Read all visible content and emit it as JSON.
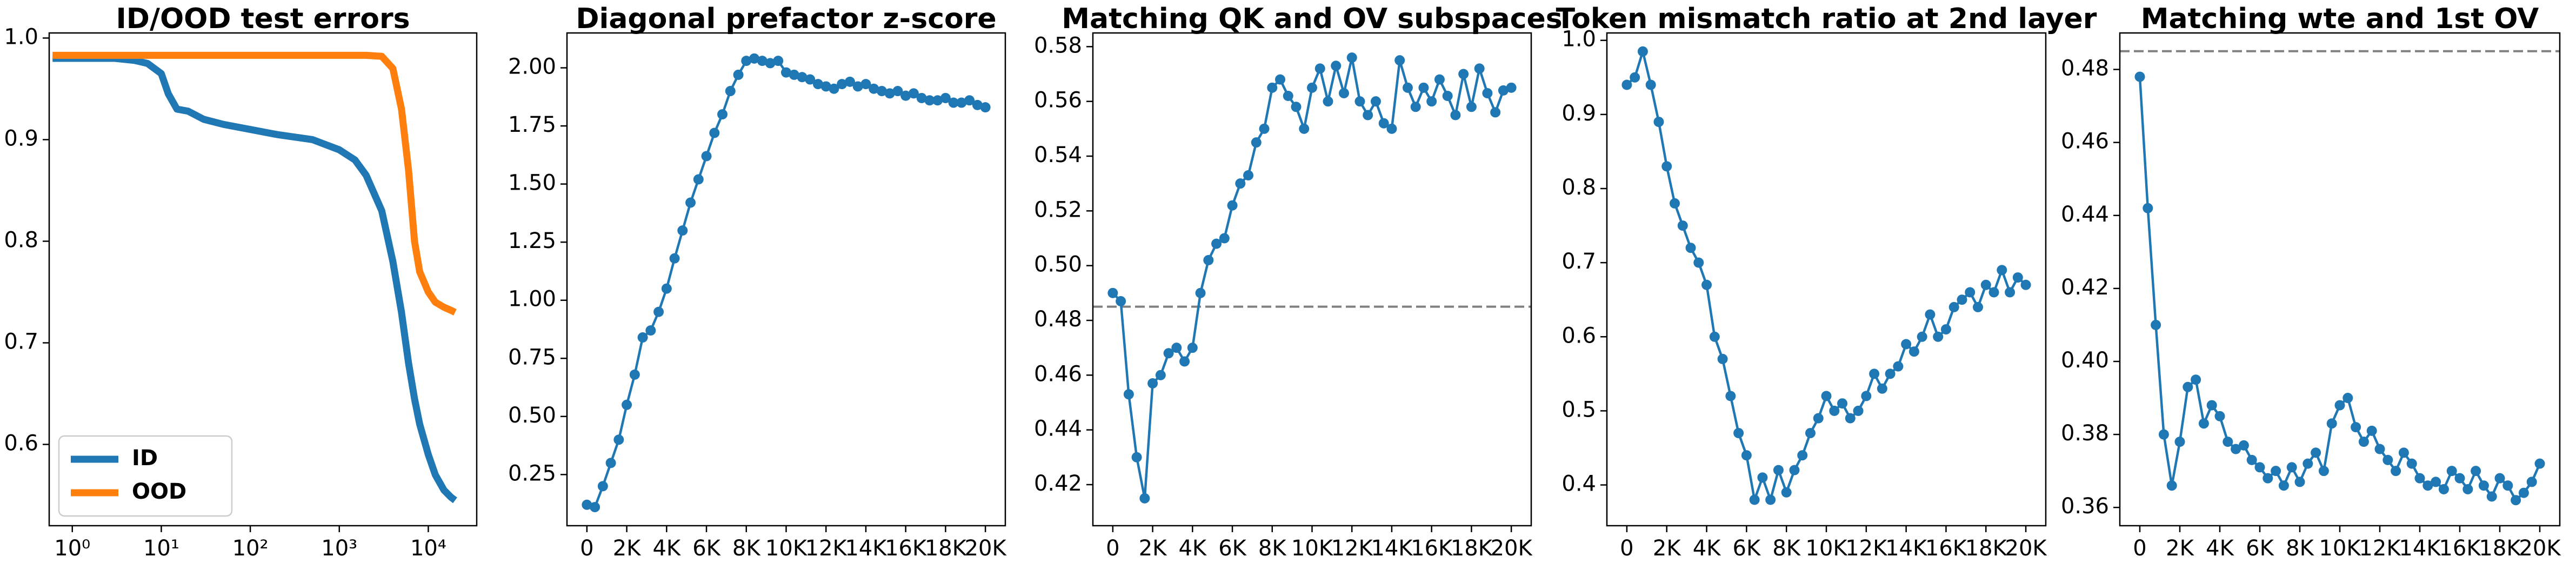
{
  "chart_data": [
    {
      "type": "line",
      "title": "ID/OOD test errors",
      "xscale": "log",
      "xlim": [
        0.55,
        35000
      ],
      "xticks": [
        {
          "value": 1,
          "label": "10⁰"
        },
        {
          "value": 10,
          "label": "10¹"
        },
        {
          "value": 100,
          "label": "10²"
        },
        {
          "value": 1000,
          "label": "10³"
        },
        {
          "value": 10000,
          "label": "10⁴"
        }
      ],
      "ylim": [
        0.52,
        1.005
      ],
      "yticks": [
        0.6,
        0.7,
        0.8,
        0.9,
        {
          "value": 1,
          "label": "1.0"
        }
      ],
      "legend": "lower left",
      "markers": false,
      "x": [
        0.6,
        1,
        2,
        3,
        5,
        7,
        10,
        12,
        15,
        20,
        30,
        50,
        100,
        200,
        500,
        1000,
        1500,
        2000,
        3000,
        4000,
        5000,
        6000,
        7000,
        8000,
        10000,
        12000,
        15000,
        18000,
        20000
      ],
      "series": [
        {
          "name": "ID",
          "color": "#1f77b4",
          "values": [
            0.98,
            0.98,
            0.98,
            0.98,
            0.978,
            0.975,
            0.965,
            0.945,
            0.93,
            0.928,
            0.92,
            0.915,
            0.91,
            0.905,
            0.9,
            0.89,
            0.88,
            0.865,
            0.83,
            0.78,
            0.73,
            0.68,
            0.645,
            0.62,
            0.59,
            0.57,
            0.555,
            0.548,
            0.545
          ]
        },
        {
          "name": "OOD",
          "color": "#ff7f0e",
          "values": [
            0.983,
            0.983,
            0.983,
            0.983,
            0.983,
            0.983,
            0.983,
            0.983,
            0.983,
            0.983,
            0.983,
            0.983,
            0.983,
            0.983,
            0.983,
            0.983,
            0.983,
            0.983,
            0.982,
            0.97,
            0.93,
            0.87,
            0.8,
            0.77,
            0.75,
            0.74,
            0.735,
            0.732,
            0.73
          ]
        }
      ]
    },
    {
      "type": "line",
      "title": "Diagonal prefactor z-score",
      "xlim": [
        -1000,
        21000
      ],
      "xticks": [
        0,
        {
          "value": 2000,
          "label": "2K"
        },
        {
          "value": 4000,
          "label": "4K"
        },
        {
          "value": 6000,
          "label": "6K"
        },
        {
          "value": 8000,
          "label": "8K"
        },
        {
          "value": 10000,
          "label": "10K"
        },
        {
          "value": 12000,
          "label": "12K"
        },
        {
          "value": 14000,
          "label": "14K"
        },
        {
          "value": 16000,
          "label": "16K"
        },
        {
          "value": 18000,
          "label": "18K"
        },
        {
          "value": 20000,
          "label": "20K"
        }
      ],
      "ylim": [
        0.03,
        2.15
      ],
      "yticks": [
        0.25,
        {
          "value": 0.5,
          "label": "0.50"
        },
        0.75,
        {
          "value": 1,
          "label": "1.00"
        },
        1.25,
        {
          "value": 1.5,
          "label": "1.50"
        },
        1.75,
        {
          "value": 2,
          "label": "2.00"
        }
      ],
      "markers": true,
      "x": [
        0,
        400,
        800,
        1200,
        1600,
        2000,
        2400,
        2800,
        3200,
        3600,
        4000,
        4400,
        4800,
        5200,
        5600,
        6000,
        6400,
        6800,
        7200,
        7600,
        8000,
        8400,
        8800,
        9200,
        9600,
        10000,
        10400,
        10800,
        11200,
        11600,
        12000,
        12400,
        12800,
        13200,
        13600,
        14000,
        14400,
        14800,
        15200,
        15600,
        16000,
        16400,
        16800,
        17200,
        17600,
        18000,
        18400,
        18800,
        19200,
        19600,
        20000
      ],
      "series": [
        {
          "color": "#1f77b4",
          "values": [
            0.12,
            0.11,
            0.2,
            0.3,
            0.4,
            0.55,
            0.68,
            0.84,
            0.87,
            0.95,
            1.05,
            1.18,
            1.3,
            1.42,
            1.52,
            1.62,
            1.72,
            1.8,
            1.9,
            1.97,
            2.03,
            2.04,
            2.03,
            2.02,
            2.03,
            1.98,
            1.97,
            1.96,
            1.95,
            1.93,
            1.92,
            1.91,
            1.93,
            1.94,
            1.92,
            1.93,
            1.91,
            1.9,
            1.89,
            1.9,
            1.88,
            1.89,
            1.87,
            1.86,
            1.86,
            1.87,
            1.85,
            1.85,
            1.86,
            1.84,
            1.83
          ]
        }
      ]
    },
    {
      "type": "line",
      "title": "Matching QK and OV subspaces",
      "xlim": [
        -1000,
        21000
      ],
      "xticks": [
        0,
        {
          "value": 2000,
          "label": "2K"
        },
        {
          "value": 4000,
          "label": "4K"
        },
        {
          "value": 6000,
          "label": "6K"
        },
        {
          "value": 8000,
          "label": "8K"
        },
        {
          "value": 10000,
          "label": "10K"
        },
        {
          "value": 12000,
          "label": "12K"
        },
        {
          "value": 14000,
          "label": "14K"
        },
        {
          "value": 16000,
          "label": "16K"
        },
        {
          "value": 18000,
          "label": "18K"
        },
        {
          "value": 20000,
          "label": "20K"
        }
      ],
      "ylim": [
        0.405,
        0.585
      ],
      "yticks": [
        0.42,
        0.44,
        0.46,
        0.48,
        {
          "value": 0.5,
          "label": "0.50"
        },
        0.52,
        0.54,
        0.56,
        0.58
      ],
      "markers": true,
      "hline": 0.485,
      "x": [
        0,
        400,
        800,
        1200,
        1600,
        2000,
        2400,
        2800,
        3200,
        3600,
        4000,
        4400,
        4800,
        5200,
        5600,
        6000,
        6400,
        6800,
        7200,
        7600,
        8000,
        8400,
        8800,
        9200,
        9600,
        10000,
        10400,
        10800,
        11200,
        11600,
        12000,
        12400,
        12800,
        13200,
        13600,
        14000,
        14400,
        14800,
        15200,
        15600,
        16000,
        16400,
        16800,
        17200,
        17600,
        18000,
        18400,
        18800,
        19200,
        19600,
        20000
      ],
      "series": [
        {
          "color": "#1f77b4",
          "values": [
            0.49,
            0.487,
            0.453,
            0.43,
            0.415,
            0.457,
            0.46,
            0.468,
            0.47,
            0.465,
            0.47,
            0.49,
            0.502,
            0.508,
            0.51,
            0.522,
            0.53,
            0.533,
            0.545,
            0.55,
            0.565,
            0.568,
            0.562,
            0.558,
            0.55,
            0.565,
            0.572,
            0.56,
            0.573,
            0.563,
            0.576,
            0.56,
            0.555,
            0.56,
            0.552,
            0.55,
            0.575,
            0.565,
            0.558,
            0.565,
            0.56,
            0.568,
            0.562,
            0.555,
            0.57,
            0.558,
            0.572,
            0.563,
            0.556,
            0.564,
            0.565
          ]
        }
      ]
    },
    {
      "type": "line",
      "title": "Token mismatch ratio at 2nd layer",
      "xlim": [
        -1000,
        21000
      ],
      "xticks": [
        0,
        {
          "value": 2000,
          "label": "2K"
        },
        {
          "value": 4000,
          "label": "4K"
        },
        {
          "value": 6000,
          "label": "6K"
        },
        {
          "value": 8000,
          "label": "8K"
        },
        {
          "value": 10000,
          "label": "10K"
        },
        {
          "value": 12000,
          "label": "12K"
        },
        {
          "value": 14000,
          "label": "14K"
        },
        {
          "value": 16000,
          "label": "16K"
        },
        {
          "value": 18000,
          "label": "18K"
        },
        {
          "value": 20000,
          "label": "20K"
        }
      ],
      "ylim": [
        0.345,
        1.01
      ],
      "yticks": [
        0.4,
        0.5,
        0.6,
        0.7,
        0.8,
        0.9,
        {
          "value": 1,
          "label": "1.0"
        }
      ],
      "markers": true,
      "x": [
        0,
        400,
        800,
        1200,
        1600,
        2000,
        2400,
        2800,
        3200,
        3600,
        4000,
        4400,
        4800,
        5200,
        5600,
        6000,
        6400,
        6800,
        7200,
        7600,
        8000,
        8400,
        8800,
        9200,
        9600,
        10000,
        10400,
        10800,
        11200,
        11600,
        12000,
        12400,
        12800,
        13200,
        13600,
        14000,
        14400,
        14800,
        15200,
        15600,
        16000,
        16400,
        16800,
        17200,
        17600,
        18000,
        18400,
        18800,
        19200,
        19600,
        20000
      ],
      "series": [
        {
          "color": "#1f77b4",
          "values": [
            0.94,
            0.95,
            0.985,
            0.94,
            0.89,
            0.83,
            0.78,
            0.75,
            0.72,
            0.7,
            0.67,
            0.6,
            0.57,
            0.52,
            0.47,
            0.44,
            0.38,
            0.41,
            0.38,
            0.42,
            0.39,
            0.42,
            0.44,
            0.47,
            0.49,
            0.52,
            0.5,
            0.51,
            0.49,
            0.5,
            0.52,
            0.55,
            0.53,
            0.55,
            0.56,
            0.59,
            0.58,
            0.6,
            0.63,
            0.6,
            0.61,
            0.64,
            0.65,
            0.66,
            0.64,
            0.67,
            0.66,
            0.69,
            0.66,
            0.68,
            0.67
          ]
        }
      ]
    },
    {
      "type": "line",
      "title": "Matching wte and 1st OV",
      "xlim": [
        -1000,
        21000
      ],
      "xticks": [
        0,
        {
          "value": 2000,
          "label": "2K"
        },
        {
          "value": 4000,
          "label": "4K"
        },
        {
          "value": 6000,
          "label": "6K"
        },
        {
          "value": 8000,
          "label": "8K"
        },
        {
          "value": 10000,
          "label": "10K"
        },
        {
          "value": 12000,
          "label": "12K"
        },
        {
          "value": 14000,
          "label": "14K"
        },
        {
          "value": 16000,
          "label": "16K"
        },
        {
          "value": 18000,
          "label": "18K"
        },
        {
          "value": 20000,
          "label": "20K"
        }
      ],
      "ylim": [
        0.355,
        0.49
      ],
      "yticks": [
        0.36,
        0.38,
        {
          "value": 0.4,
          "label": "0.40"
        },
        0.42,
        0.44,
        0.46,
        0.48
      ],
      "markers": true,
      "hline": 0.485,
      "x": [
        0,
        400,
        800,
        1200,
        1600,
        2000,
        2400,
        2800,
        3200,
        3600,
        4000,
        4400,
        4800,
        5200,
        5600,
        6000,
        6400,
        6800,
        7200,
        7600,
        8000,
        8400,
        8800,
        9200,
        9600,
        10000,
        10400,
        10800,
        11200,
        11600,
        12000,
        12400,
        12800,
        13200,
        13600,
        14000,
        14400,
        14800,
        15200,
        15600,
        16000,
        16400,
        16800,
        17200,
        17600,
        18000,
        18400,
        18800,
        19200,
        19600,
        20000
      ],
      "series": [
        {
          "color": "#1f77b4",
          "values": [
            0.478,
            0.442,
            0.41,
            0.38,
            0.366,
            0.378,
            0.393,
            0.395,
            0.383,
            0.388,
            0.385,
            0.378,
            0.376,
            0.377,
            0.373,
            0.371,
            0.368,
            0.37,
            0.366,
            0.371,
            0.367,
            0.372,
            0.375,
            0.37,
            0.383,
            0.388,
            0.39,
            0.382,
            0.378,
            0.381,
            0.376,
            0.373,
            0.37,
            0.375,
            0.372,
            0.368,
            0.366,
            0.367,
            0.365,
            0.37,
            0.368,
            0.365,
            0.37,
            0.366,
            0.363,
            0.368,
            0.366,
            0.362,
            0.364,
            0.367,
            0.372
          ]
        }
      ]
    }
  ]
}
